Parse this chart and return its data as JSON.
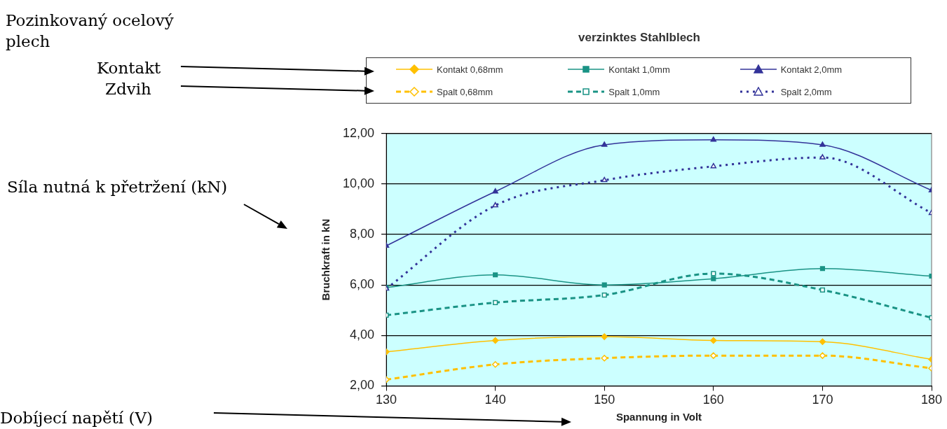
{
  "chart_data": {
    "type": "line",
    "title": "verzinktes Stahlblech",
    "xlabel": "Spannung in Volt",
    "ylabel": "Bruchkraft in kN",
    "x": [
      130,
      140,
      150,
      160,
      170,
      180
    ],
    "series": [
      {
        "name": "Kontakt 0,68mm",
        "color": "#ffc000",
        "marker": "diamond",
        "line_style": "solid",
        "values": [
          3.35,
          3.8,
          3.95,
          3.8,
          3.75,
          3.05
        ]
      },
      {
        "name": "Kontakt 1,0mm",
        "color": "#1a9385",
        "marker": "square",
        "line_style": "solid",
        "values": [
          5.9,
          6.4,
          6.0,
          6.25,
          6.65,
          6.35
        ]
      },
      {
        "name": "Kontakt 2,0mm",
        "color": "#333399",
        "marker": "triangle",
        "line_style": "solid",
        "values": [
          7.55,
          9.7,
          11.55,
          11.75,
          11.55,
          9.75
        ]
      },
      {
        "name": "Spalt 0,68mm",
        "color": "#ffc000",
        "marker": "diamond",
        "line_style": "dashed",
        "values": [
          2.25,
          2.85,
          3.1,
          3.2,
          3.2,
          2.7
        ]
      },
      {
        "name": "Spalt 1,0mm",
        "color": "#1a9385",
        "marker": "square",
        "line_style": "dashed",
        "values": [
          4.8,
          5.3,
          5.6,
          6.45,
          5.8,
          4.7
        ]
      },
      {
        "name": "Spalt 2,0mm",
        "color": "#333399",
        "marker": "triangle",
        "line_style": "dotted",
        "values": [
          5.85,
          9.15,
          10.15,
          10.7,
          11.05,
          8.85
        ]
      }
    ],
    "xlim": [
      130,
      180
    ],
    "xticks": [
      130,
      140,
      150,
      160,
      170,
      180
    ],
    "ylim": [
      2,
      12
    ],
    "yticks": [
      {
        "value": 2,
        "label": "2,00"
      },
      {
        "value": 4,
        "label": "4,00"
      },
      {
        "value": 6,
        "label": "6,00"
      },
      {
        "value": 8,
        "label": "8,00"
      },
      {
        "value": 10,
        "label": "10,00"
      },
      {
        "value": 12,
        "label": "12,00"
      }
    ],
    "grid": "y",
    "legend": "top",
    "annotations": [
      "Pozinkovaný ocelový plech",
      "Kontakt",
      "Zdvih",
      "Síla nutná k přetržení (kN)",
      "Dobíjecí napětí (V)"
    ]
  }
}
